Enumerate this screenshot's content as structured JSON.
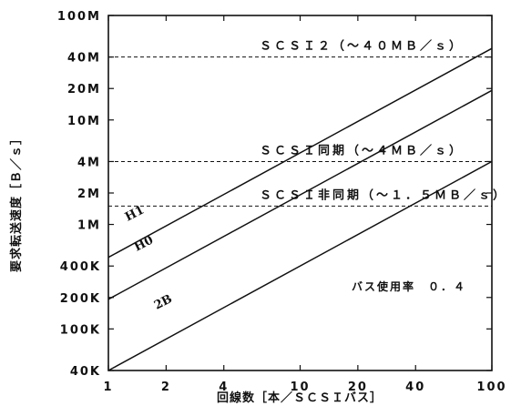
{
  "chart_data": {
    "type": "line",
    "xlabel": "回線数［本／ＳＣＳＩバス］",
    "ylabel": "要求転送速度［Ｂ／ｓ］",
    "xscale": "log",
    "yscale": "log",
    "xlim": [
      1,
      100
    ],
    "ylim": [
      40000,
      100000000
    ],
    "x_ticks": [
      {
        "value": 1,
        "label": "1"
      },
      {
        "value": 2,
        "label": "2"
      },
      {
        "value": 4,
        "label": "4"
      },
      {
        "value": 10,
        "label": "10"
      },
      {
        "value": 20,
        "label": "20"
      },
      {
        "value": 40,
        "label": "40"
      },
      {
        "value": 100,
        "label": "100"
      }
    ],
    "y_ticks": [
      {
        "value": 40000,
        "label": "40K"
      },
      {
        "value": 100000,
        "label": "100K"
      },
      {
        "value": 200000,
        "label": "200K"
      },
      {
        "value": 400000,
        "label": "400K"
      },
      {
        "value": 1000000,
        "label": "1M"
      },
      {
        "value": 2000000,
        "label": "2M"
      },
      {
        "value": 4000000,
        "label": "4M"
      },
      {
        "value": 10000000,
        "label": "10M"
      },
      {
        "value": 20000000,
        "label": "20M"
      },
      {
        "value": 40000000,
        "label": "40M"
      },
      {
        "value": 100000000,
        "label": "100M"
      }
    ],
    "series": [
      {
        "name": "H1",
        "x": [
          1,
          100
        ],
        "y": [
          484000,
          48400000
        ]
      },
      {
        "name": "H0",
        "x": [
          1,
          100
        ],
        "y": [
          192000,
          19200000
        ]
      },
      {
        "name": "2B",
        "x": [
          1,
          100
        ],
        "y": [
          40000,
          4000000
        ]
      }
    ],
    "reference_lines": [
      {
        "label": "ＳＣＳＩ２（～４０ＭＢ／ｓ）",
        "y": 40000000
      },
      {
        "label": "ＳＣＳＩ同期（～４ＭＢ／ｓ）",
        "y": 4000000
      },
      {
        "label": "ＳＣＳＩ非同期（～１．５ＭＢ／ｓ）",
        "y": 1500000
      }
    ],
    "annotation": "バス使用率　０．４",
    "grid": false,
    "legend": "none"
  }
}
